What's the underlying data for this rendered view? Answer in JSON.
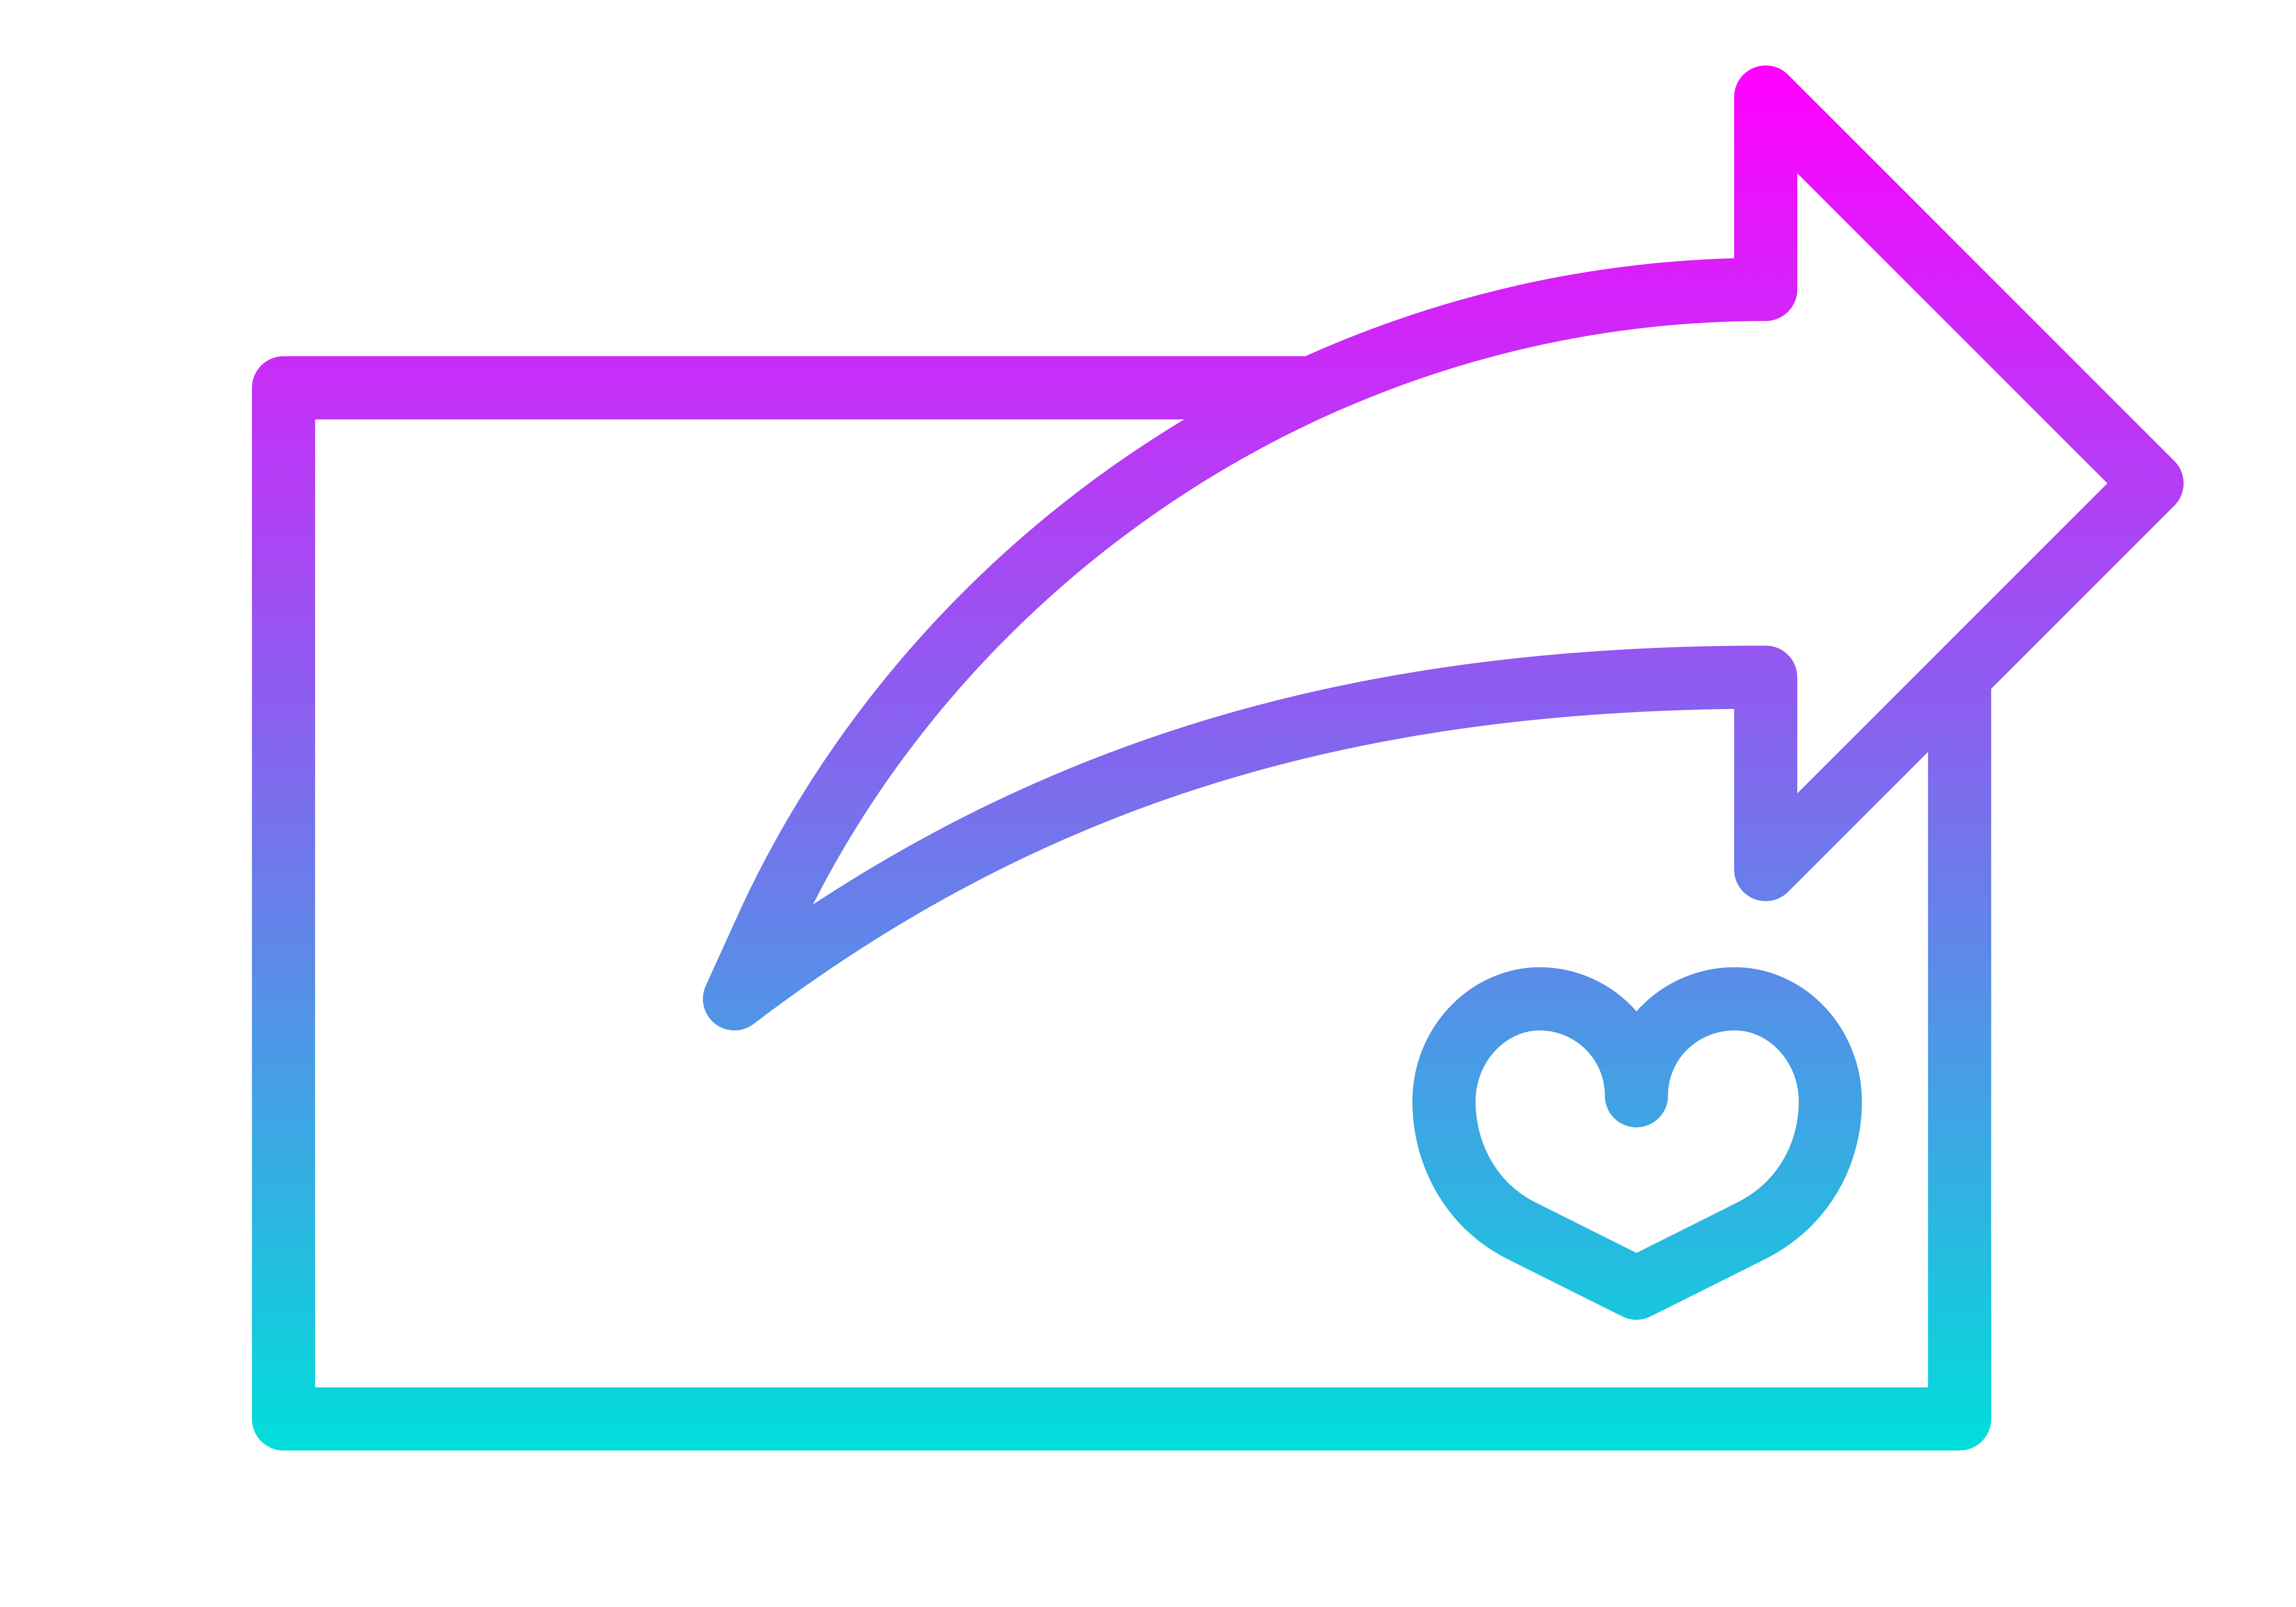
{
  "icon": {
    "name": "share-heart-box-icon",
    "parts": [
      "box-icon",
      "curved-share-arrow-icon",
      "heart-icon"
    ]
  },
  "colors": {
    "gradient_top": "#FF00FF",
    "gradient_middle": "#8E5CF0",
    "gradient_bottom": "#00DEDB",
    "background": "#FFFFFF"
  }
}
